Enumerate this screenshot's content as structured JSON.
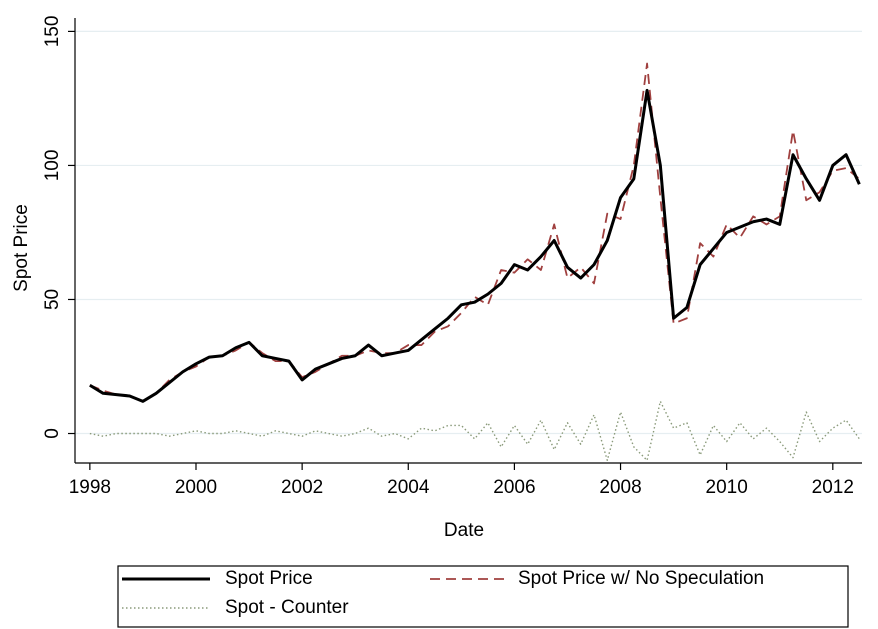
{
  "chart_data": {
    "type": "line",
    "xlabel": "Date",
    "ylabel": "Spot Price",
    "x": [
      1998,
      1998.25,
      1998.5,
      1998.75,
      1999,
      1999.25,
      1999.5,
      1999.75,
      2000,
      2000.25,
      2000.5,
      2000.75,
      2001,
      2001.25,
      2001.5,
      2001.75,
      2002,
      2002.25,
      2002.5,
      2002.75,
      2003,
      2003.25,
      2003.5,
      2003.75,
      2004,
      2004.25,
      2004.5,
      2004.75,
      2005,
      2005.25,
      2005.5,
      2005.75,
      2006,
      2006.25,
      2006.5,
      2006.75,
      2007,
      2007.25,
      2007.5,
      2007.75,
      2008,
      2008.25,
      2008.5,
      2008.75,
      2009,
      2009.25,
      2009.5,
      2009.75,
      2010,
      2010.25,
      2010.5,
      2010.75,
      2011,
      2011.25,
      2011.5,
      2011.75,
      2012,
      2012.25,
      2012.5
    ],
    "series": [
      {
        "name": "Spot Price",
        "color": "#000000",
        "style": "solid",
        "values": [
          18,
          15,
          14.5,
          14,
          12,
          15,
          19,
          23,
          26,
          28.5,
          29,
          32,
          34,
          29,
          28,
          27,
          20,
          24,
          26,
          28,
          29,
          33,
          29,
          30,
          31,
          35,
          39,
          43,
          48,
          49,
          52,
          56,
          63,
          61,
          66,
          72,
          62,
          58,
          63,
          72,
          88,
          95,
          128,
          100,
          43,
          47,
          63,
          69,
          75,
          77,
          79,
          80,
          78,
          104,
          95,
          87,
          100,
          104,
          93
        ]
      },
      {
        "name": "Spot Price w/ No Speculation",
        "color": "#a0403f",
        "style": "dashed",
        "values": [
          18,
          16,
          14.5,
          14,
          12,
          15,
          20,
          23,
          25,
          28.5,
          29,
          31,
          34,
          30,
          27,
          27,
          21,
          23,
          26,
          29,
          29,
          31,
          30,
          30,
          33,
          33,
          38,
          40,
          45,
          51,
          48,
          61,
          60,
          65,
          61,
          78,
          58,
          62,
          56,
          82,
          80,
          100,
          138,
          88,
          41,
          43,
          71,
          66,
          78,
          73,
          81,
          78,
          81,
          113,
          87,
          90,
          98,
          99,
          95
        ]
      },
      {
        "name": "Spot - Counter",
        "color": "#8a9a7a",
        "style": "dotted",
        "values": [
          0,
          -1,
          0,
          0,
          0,
          0,
          -1,
          0,
          1,
          0,
          0,
          1,
          0,
          -1,
          1,
          0,
          -1,
          1,
          0,
          -1,
          0,
          2,
          -1,
          0,
          -2,
          2,
          1,
          3,
          3,
          -2,
          4,
          -5,
          3,
          -4,
          5,
          -6,
          4,
          -4,
          7,
          -10,
          8,
          -5,
          -10,
          12,
          2,
          4,
          -8,
          3,
          -3,
          4,
          -2,
          2,
          -3,
          -9,
          8,
          -3,
          2,
          5,
          -2
        ]
      }
    ],
    "xlim": [
      1997.72,
      2012.55
    ],
    "ylim": [
      -11,
      155
    ],
    "xticks": [
      1998,
      2000,
      2002,
      2004,
      2006,
      2008,
      2010,
      2012
    ],
    "yticks": [
      0,
      50,
      100,
      150
    ],
    "grid": true,
    "legend": "bottom"
  }
}
